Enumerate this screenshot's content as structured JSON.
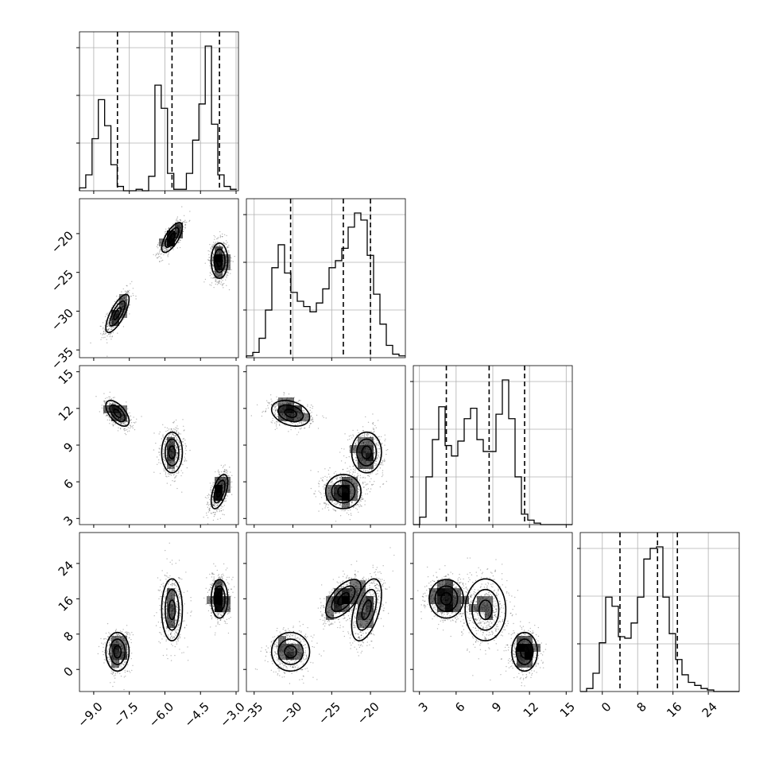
{
  "chart_data": {
    "type": "corner",
    "params": [
      {
        "id": "p1",
        "range": [
          -9.6,
          -2.9
        ],
        "ticks": [
          -9.0,
          -7.5,
          -6.0,
          -4.5,
          -3.0
        ],
        "tick_labels": [
          "−9.0",
          "−7.5",
          "−6.0",
          "−4.5",
          "−3.0"
        ],
        "quantiles": [
          -8.0,
          -5.7,
          -3.7
        ]
      },
      {
        "id": "p2",
        "range": [
          -36.0,
          -15.5
        ],
        "ticks": [
          -35,
          -30,
          -25,
          -20
        ],
        "tick_labels": [
          "−35",
          "−30",
          "−25",
          "−20"
        ],
        "quantiles": [
          -30.3,
          -23.5,
          -20.0
        ]
      },
      {
        "id": "p3",
        "range": [
          2.5,
          15.5
        ],
        "ticks": [
          3,
          6,
          9,
          12,
          15
        ],
        "tick_labels": [
          "3",
          "6",
          "9",
          "12",
          "15"
        ],
        "quantiles": [
          5.2,
          8.7,
          11.6
        ]
      },
      {
        "id": "p4",
        "range": [
          -5.0,
          31.0
        ],
        "ticks": [
          0,
          8,
          16,
          24
        ],
        "tick_labels": [
          "0",
          "8",
          "16",
          "24"
        ],
        "quantiles": [
          4.0,
          12.5,
          17.0
        ]
      }
    ],
    "histograms": [
      {
        "param": "p1",
        "bins": [
          -9.6,
          -9.335,
          -9.07,
          -8.805,
          -8.54,
          -8.275,
          -8.01,
          -7.745,
          -7.48,
          -7.215,
          -6.95,
          -6.685,
          -6.42,
          -6.155,
          -5.89,
          -5.625,
          -5.36,
          -5.095,
          -4.83,
          -4.565,
          -4.3,
          -4.035,
          -3.77,
          -3.505,
          -3.24,
          -2.975
        ],
        "counts": [
          0.02,
          0.11,
          0.36,
          0.63,
          0.45,
          0.18,
          0.03,
          0.0,
          0.0,
          0.01,
          0.0,
          0.1,
          0.73,
          0.57,
          0.12,
          0.01,
          0.01,
          0.12,
          0.35,
          0.6,
          1.0,
          0.46,
          0.11,
          0.03,
          0.01
        ]
      },
      {
        "param": "p2",
        "bins": [
          -36.0,
          -35.18,
          -34.36,
          -33.54,
          -32.72,
          -31.9,
          -31.08,
          -30.26,
          -29.44,
          -28.62,
          -27.8,
          -26.98,
          -26.16,
          -25.34,
          -24.52,
          -23.7,
          -22.88,
          -22.06,
          -21.24,
          -20.42,
          -19.6,
          -18.78,
          -17.96,
          -17.14,
          -16.32,
          -15.5
        ],
        "counts": [
          0.01,
          0.03,
          0.11,
          0.27,
          0.51,
          0.64,
          0.48,
          0.37,
          0.32,
          0.29,
          0.26,
          0.31,
          0.39,
          0.51,
          0.55,
          0.62,
          0.74,
          0.82,
          0.78,
          0.58,
          0.36,
          0.19,
          0.07,
          0.02,
          0.01
        ]
      },
      {
        "param": "p3",
        "bins": [
          2.5,
          3.02,
          3.54,
          4.06,
          4.58,
          5.1,
          5.62,
          6.14,
          6.66,
          7.18,
          7.7,
          8.22,
          8.74,
          9.26,
          9.78,
          10.3,
          10.82,
          11.34,
          11.86,
          12.38,
          12.9,
          13.42,
          13.94,
          14.46,
          14.98,
          15.5
        ],
        "counts": [
          0.0,
          0.05,
          0.32,
          0.57,
          0.79,
          0.53,
          0.46,
          0.56,
          0.71,
          0.78,
          0.57,
          0.49,
          0.49,
          0.74,
          0.97,
          0.71,
          0.32,
          0.07,
          0.03,
          0.01,
          0.0,
          0.0,
          0.0,
          0.0,
          0.0
        ]
      },
      {
        "param": "p4",
        "bins": [
          -5.0,
          -3.56,
          -2.12,
          -0.68,
          0.76,
          2.2,
          3.64,
          5.08,
          6.52,
          7.96,
          9.4,
          10.84,
          12.28,
          13.72,
          15.16,
          16.6,
          18.04,
          19.48,
          20.92,
          22.36,
          23.8,
          25.24,
          26.68,
          28.12,
          29.56,
          31.0
        ],
        "counts": [
          0.0,
          0.02,
          0.12,
          0.32,
          0.62,
          0.56,
          0.36,
          0.35,
          0.45,
          0.62,
          0.87,
          0.94,
          0.95,
          0.62,
          0.38,
          0.21,
          0.11,
          0.06,
          0.04,
          0.02,
          0.01,
          0.0,
          0.0,
          0.0,
          0.0
        ]
      }
    ],
    "clusters": [
      {
        "mean": [
          -8.0,
          -30.3,
          11.6,
          4.0
        ],
        "sd": [
          0.28,
          1.4,
          0.6,
          2.5
        ],
        "weight": 0.3,
        "corr": {
          "p1_p2": 0.75,
          "p1_p3": -0.6,
          "p2_p3": -0.3,
          "p1_p4": 0.0,
          "p2_p4": 0.0,
          "p3_p4": 0.0
        }
      },
      {
        "mean": [
          -5.7,
          -20.5,
          8.4,
          13.5
        ],
        "sd": [
          0.25,
          1.1,
          0.95,
          4.0
        ],
        "weight": 0.33,
        "corr": {
          "p1_p2": 0.7,
          "p1_p3": 0.0,
          "p2_p3": 0.0,
          "p1_p4": 0.0,
          "p2_p4": 0.5,
          "p3_p4": 0.0
        }
      },
      {
        "mean": [
          -3.7,
          -23.5,
          5.2,
          16.0
        ],
        "sd": [
          0.2,
          1.3,
          0.8,
          2.5
        ],
        "weight": 0.37,
        "corr": {
          "p1_p2": 0.0,
          "p1_p3": 0.55,
          "p2_p3": 0.0,
          "p1_p4": 0.0,
          "p2_p4": 0.6,
          "p3_p4": 0.0
        }
      }
    ],
    "grid": true,
    "colors": {
      "points": "#000000",
      "contour": "#000000",
      "quantile": "#000000",
      "grid": "#b0b0b0",
      "frame": "#000000"
    }
  }
}
